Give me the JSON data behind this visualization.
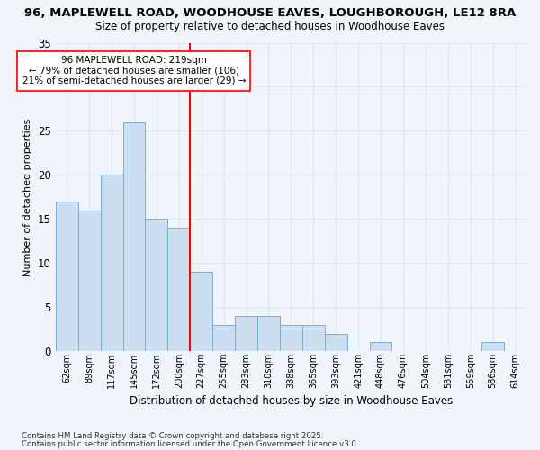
{
  "title": "96, MAPLEWELL ROAD, WOODHOUSE EAVES, LOUGHBOROUGH, LE12 8RA",
  "subtitle": "Size of property relative to detached houses in Woodhouse Eaves",
  "xlabel": "Distribution of detached houses by size in Woodhouse Eaves",
  "ylabel": "Number of detached properties",
  "footnote1": "Contains HM Land Registry data © Crown copyright and database right 2025.",
  "footnote2": "Contains public sector information licensed under the Open Government Licence v3.0.",
  "bar_labels": [
    "62sqm",
    "89sqm",
    "117sqm",
    "145sqm",
    "172sqm",
    "200sqm",
    "227sqm",
    "255sqm",
    "283sqm",
    "310sqm",
    "338sqm",
    "365sqm",
    "393sqm",
    "421sqm",
    "448sqm",
    "476sqm",
    "504sqm",
    "531sqm",
    "559sqm",
    "586sqm",
    "614sqm"
  ],
  "bar_values": [
    17,
    16,
    20,
    26,
    15,
    14,
    9,
    3,
    4,
    4,
    3,
    3,
    2,
    0,
    1,
    0,
    0,
    0,
    0,
    1,
    0
  ],
  "bar_color": "#ccdff0",
  "bar_edgecolor": "#7bafd4",
  "background_color": "#f0f5fb",
  "grid_color": "#d8e8f5",
  "red_line_x": 6,
  "annotation_title": "96 MAPLEWELL ROAD: 219sqm",
  "annotation_line1": "← 79% of detached houses are smaller (106)",
  "annotation_line2": "21% of semi-detached houses are larger (29) →",
  "ylim": [
    0,
    35
  ],
  "yticks": [
    0,
    5,
    10,
    15,
    20,
    25,
    30,
    35
  ]
}
